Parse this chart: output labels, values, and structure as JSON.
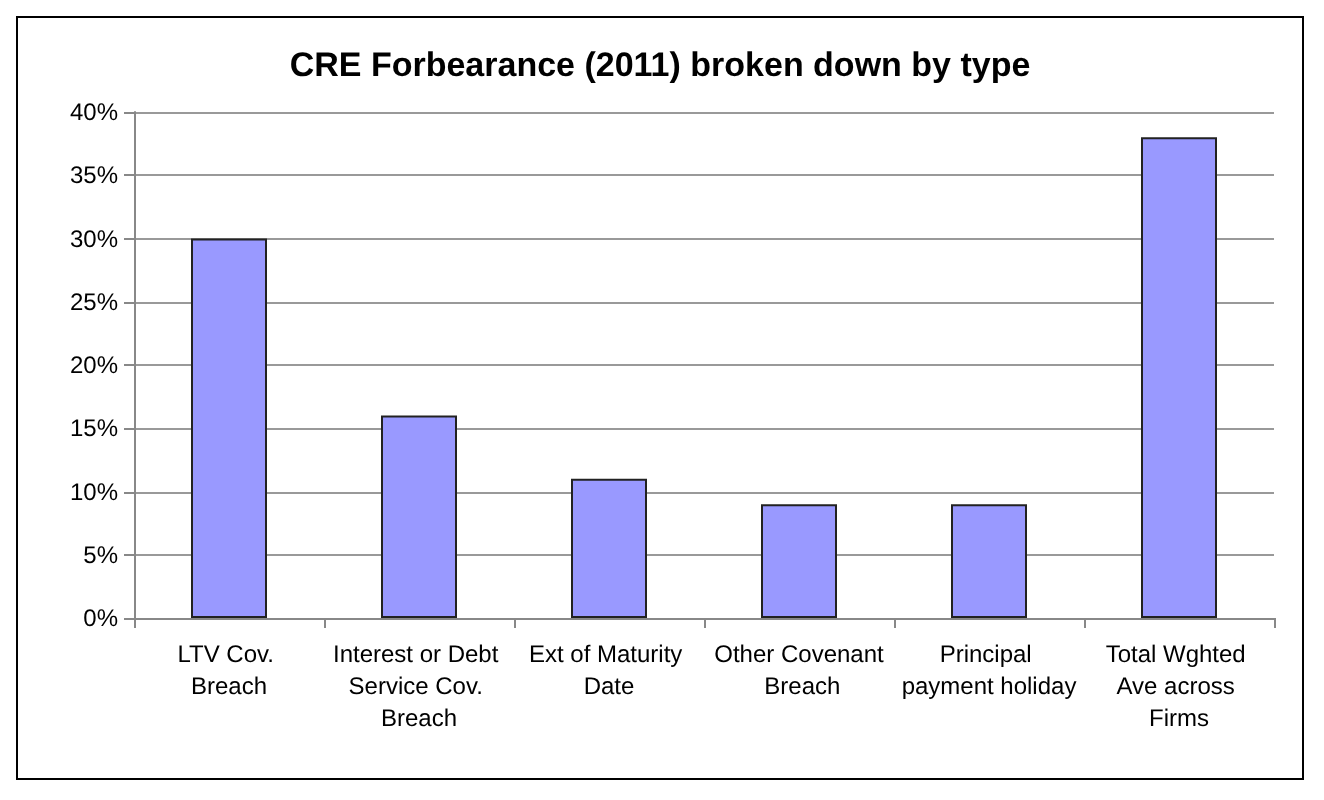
{
  "chart_data": {
    "type": "bar",
    "title": "CRE Forbearance (2011) broken down by type",
    "categories": [
      "LTV Cov. Breach",
      "Interest or Debt Service Cov. Breach",
      "Ext of Maturity Date",
      "Other Covenant Breach",
      "Principal payment holiday",
      "Total Wghted Ave across Firms"
    ],
    "values": [
      30,
      16,
      11,
      9,
      9,
      38
    ],
    "color": "#9999ff",
    "ylim": [
      0,
      40
    ],
    "yticks": [
      {
        "value": 0,
        "label": "0%"
      },
      {
        "value": 5,
        "label": "5%"
      },
      {
        "value": 10,
        "label": "10%"
      },
      {
        "value": 15,
        "label": "15%"
      },
      {
        "value": 20,
        "label": "20%"
      },
      {
        "value": 25,
        "label": "25%"
      },
      {
        "value": 30,
        "label": "30%"
      },
      {
        "value": 35,
        "label": "35%"
      },
      {
        "value": 40,
        "label": "40%"
      }
    ],
    "grid": "y"
  }
}
